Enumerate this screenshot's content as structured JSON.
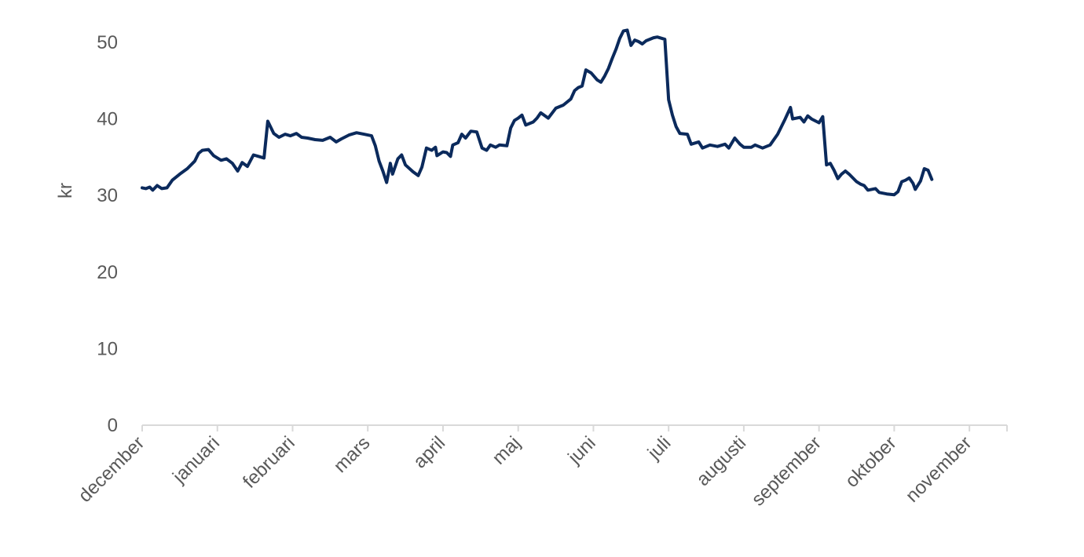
{
  "chart_data": {
    "type": "line",
    "ylabel": "kr",
    "xlabel": "",
    "title": "",
    "ylim": [
      0,
      50
    ],
    "yticks": [
      0,
      10,
      20,
      30,
      40,
      50
    ],
    "months": [
      "december",
      "januari",
      "februari",
      "mars",
      "april",
      "maj",
      "juni",
      "juli",
      "augusti",
      "september",
      "oktober",
      "november"
    ],
    "grid": false,
    "legend": "none",
    "line_color": "#0b2a5c",
    "series": [
      {
        "values": [
          [
            0.0,
            31.0
          ],
          [
            0.05,
            30.9
          ],
          [
            0.1,
            31.1
          ],
          [
            0.14,
            30.7
          ],
          [
            0.2,
            31.3
          ],
          [
            0.26,
            30.9
          ],
          [
            0.33,
            31.0
          ],
          [
            0.4,
            32.0
          ],
          [
            0.5,
            32.8
          ],
          [
            0.6,
            33.5
          ],
          [
            0.7,
            34.5
          ],
          [
            0.75,
            35.5
          ],
          [
            0.8,
            35.9
          ],
          [
            0.88,
            36.0
          ],
          [
            0.95,
            35.2
          ],
          [
            1.05,
            34.6
          ],
          [
            1.12,
            34.8
          ],
          [
            1.2,
            34.2
          ],
          [
            1.27,
            33.2
          ],
          [
            1.33,
            34.3
          ],
          [
            1.4,
            33.8
          ],
          [
            1.48,
            35.3
          ],
          [
            1.55,
            35.1
          ],
          [
            1.62,
            34.9
          ],
          [
            1.67,
            39.7
          ],
          [
            1.75,
            38.1
          ],
          [
            1.82,
            37.6
          ],
          [
            1.9,
            38.0
          ],
          [
            1.97,
            37.8
          ],
          [
            2.05,
            38.1
          ],
          [
            2.12,
            37.6
          ],
          [
            2.2,
            37.5
          ],
          [
            2.3,
            37.3
          ],
          [
            2.4,
            37.2
          ],
          [
            2.5,
            37.6
          ],
          [
            2.58,
            37.0
          ],
          [
            2.65,
            37.4
          ],
          [
            2.75,
            37.9
          ],
          [
            2.85,
            38.2
          ],
          [
            2.95,
            38.0
          ],
          [
            3.05,
            37.8
          ],
          [
            3.1,
            36.5
          ],
          [
            3.15,
            34.5
          ],
          [
            3.2,
            33.2
          ],
          [
            3.25,
            31.7
          ],
          [
            3.3,
            34.2
          ],
          [
            3.33,
            32.8
          ],
          [
            3.4,
            34.8
          ],
          [
            3.45,
            35.3
          ],
          [
            3.5,
            34.0
          ],
          [
            3.6,
            33.1
          ],
          [
            3.67,
            32.6
          ],
          [
            3.72,
            33.7
          ],
          [
            3.78,
            36.2
          ],
          [
            3.85,
            35.9
          ],
          [
            3.9,
            36.3
          ],
          [
            3.92,
            35.2
          ],
          [
            4.0,
            35.7
          ],
          [
            4.05,
            35.6
          ],
          [
            4.1,
            35.1
          ],
          [
            4.13,
            36.6
          ],
          [
            4.2,
            36.9
          ],
          [
            4.25,
            38.0
          ],
          [
            4.3,
            37.5
          ],
          [
            4.37,
            38.4
          ],
          [
            4.45,
            38.3
          ],
          [
            4.52,
            36.2
          ],
          [
            4.58,
            35.9
          ],
          [
            4.63,
            36.6
          ],
          [
            4.7,
            36.3
          ],
          [
            4.75,
            36.6
          ],
          [
            4.85,
            36.5
          ],
          [
            4.9,
            38.8
          ],
          [
            4.95,
            39.8
          ],
          [
            5.0,
            40.1
          ],
          [
            5.05,
            40.5
          ],
          [
            5.1,
            39.2
          ],
          [
            5.2,
            39.6
          ],
          [
            5.25,
            40.1
          ],
          [
            5.3,
            40.8
          ],
          [
            5.4,
            40.1
          ],
          [
            5.5,
            41.4
          ],
          [
            5.6,
            41.8
          ],
          [
            5.7,
            42.6
          ],
          [
            5.75,
            43.7
          ],
          [
            5.8,
            44.1
          ],
          [
            5.85,
            44.3
          ],
          [
            5.9,
            46.4
          ],
          [
            5.97,
            46.0
          ],
          [
            6.05,
            45.1
          ],
          [
            6.1,
            44.8
          ],
          [
            6.15,
            45.6
          ],
          [
            6.2,
            46.6
          ],
          [
            6.25,
            47.9
          ],
          [
            6.3,
            49.1
          ],
          [
            6.35,
            50.5
          ],
          [
            6.4,
            51.5
          ],
          [
            6.45,
            51.6
          ],
          [
            6.5,
            49.6
          ],
          [
            6.55,
            50.3
          ],
          [
            6.6,
            50.1
          ],
          [
            6.65,
            49.8
          ],
          [
            6.7,
            50.2
          ],
          [
            6.8,
            50.6
          ],
          [
            6.85,
            50.7
          ],
          [
            6.95,
            50.4
          ],
          [
            7.0,
            42.5
          ],
          [
            7.05,
            40.5
          ],
          [
            7.1,
            39.0
          ],
          [
            7.15,
            38.1
          ],
          [
            7.25,
            38.0
          ],
          [
            7.3,
            36.7
          ],
          [
            7.4,
            37.0
          ],
          [
            7.45,
            36.2
          ],
          [
            7.55,
            36.6
          ],
          [
            7.65,
            36.4
          ],
          [
            7.75,
            36.7
          ],
          [
            7.8,
            36.2
          ],
          [
            7.88,
            37.5
          ],
          [
            7.95,
            36.7
          ],
          [
            8.0,
            36.3
          ],
          [
            8.1,
            36.3
          ],
          [
            8.15,
            36.6
          ],
          [
            8.25,
            36.2
          ],
          [
            8.35,
            36.6
          ],
          [
            8.45,
            38.0
          ],
          [
            8.55,
            40.0
          ],
          [
            8.62,
            41.5
          ],
          [
            8.65,
            40.0
          ],
          [
            8.75,
            40.2
          ],
          [
            8.8,
            39.6
          ],
          [
            8.85,
            40.4
          ],
          [
            8.9,
            40.0
          ],
          [
            9.0,
            39.5
          ],
          [
            9.05,
            40.3
          ],
          [
            9.1,
            34.0
          ],
          [
            9.15,
            34.2
          ],
          [
            9.2,
            33.3
          ],
          [
            9.25,
            32.2
          ],
          [
            9.3,
            32.8
          ],
          [
            9.35,
            33.2
          ],
          [
            9.4,
            32.8
          ],
          [
            9.5,
            31.8
          ],
          [
            9.55,
            31.5
          ],
          [
            9.6,
            31.3
          ],
          [
            9.65,
            30.7
          ],
          [
            9.75,
            30.9
          ],
          [
            9.8,
            30.4
          ],
          [
            9.9,
            30.2
          ],
          [
            10.0,
            30.1
          ],
          [
            10.05,
            30.5
          ],
          [
            10.1,
            31.8
          ],
          [
            10.15,
            32.0
          ],
          [
            10.2,
            32.3
          ],
          [
            10.25,
            31.6
          ],
          [
            10.28,
            30.8
          ],
          [
            10.35,
            31.9
          ],
          [
            10.4,
            33.5
          ],
          [
            10.45,
            33.3
          ],
          [
            10.5,
            32.1
          ]
        ]
      }
    ]
  }
}
